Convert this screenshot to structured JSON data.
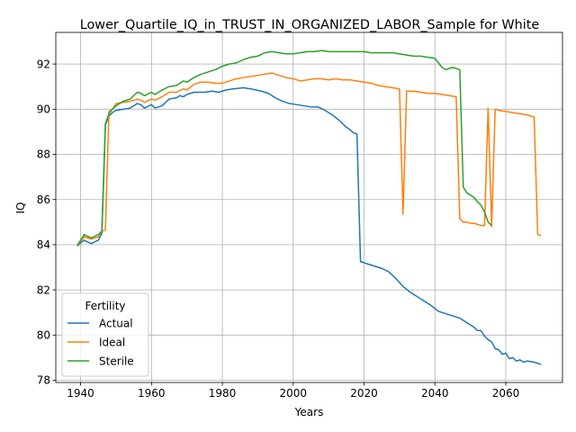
{
  "chart_data": {
    "type": "line",
    "title": "Lower_Quartile_IQ_in_TRUST_IN_ORGANIZED_LABOR_Sample for White",
    "xlabel": "Years",
    "ylabel": "IQ",
    "xlim": [
      1933,
      2076
    ],
    "ylim": [
      77.9,
      93.4
    ],
    "xticks": [
      1940,
      1960,
      1980,
      2000,
      2020,
      2040,
      2060
    ],
    "yticks": [
      78,
      80,
      82,
      84,
      86,
      88,
      90,
      92
    ],
    "grid": true,
    "legend": {
      "title": "Fertility",
      "placement": "lower-left"
    },
    "series": [
      {
        "name": "Actual",
        "color": "#1f77b4",
        "points": [
          [
            1939,
            83.95
          ],
          [
            1941,
            84.2
          ],
          [
            1943,
            84.05
          ],
          [
            1945,
            84.2
          ],
          [
            1946,
            84.5
          ],
          [
            1947,
            89.3
          ],
          [
            1948,
            89.7
          ],
          [
            1949,
            89.85
          ],
          [
            1950,
            89.95
          ],
          [
            1952,
            90.0
          ],
          [
            1954,
            90.05
          ],
          [
            1956,
            90.25
          ],
          [
            1957,
            90.2
          ],
          [
            1958,
            90.05
          ],
          [
            1960,
            90.2
          ],
          [
            1961,
            90.05
          ],
          [
            1963,
            90.15
          ],
          [
            1965,
            90.45
          ],
          [
            1967,
            90.5
          ],
          [
            1968,
            90.6
          ],
          [
            1969,
            90.55
          ],
          [
            1970,
            90.65
          ],
          [
            1972,
            90.75
          ],
          [
            1975,
            90.75
          ],
          [
            1977,
            90.8
          ],
          [
            1979,
            90.75
          ],
          [
            1981,
            90.85
          ],
          [
            1983,
            90.9
          ],
          [
            1986,
            90.95
          ],
          [
            1988,
            90.9
          ],
          [
            1991,
            90.8
          ],
          [
            1993,
            90.7
          ],
          [
            1995,
            90.5
          ],
          [
            1997,
            90.35
          ],
          [
            1999,
            90.25
          ],
          [
            2001,
            90.2
          ],
          [
            2003,
            90.15
          ],
          [
            2005,
            90.1
          ],
          [
            2007,
            90.1
          ],
          [
            2009,
            89.95
          ],
          [
            2011,
            89.75
          ],
          [
            2013,
            89.5
          ],
          [
            2015,
            89.2
          ],
          [
            2016,
            89.1
          ],
          [
            2017,
            88.95
          ],
          [
            2018,
            88.9
          ],
          [
            2019,
            83.25
          ],
          [
            2020,
            83.2
          ],
          [
            2021,
            83.15
          ],
          [
            2023,
            83.05
          ],
          [
            2025,
            82.95
          ],
          [
            2027,
            82.8
          ],
          [
            2029,
            82.5
          ],
          [
            2031,
            82.15
          ],
          [
            2033,
            81.9
          ],
          [
            2035,
            81.7
          ],
          [
            2037,
            81.5
          ],
          [
            2039,
            81.3
          ],
          [
            2041,
            81.05
          ],
          [
            2043,
            80.95
          ],
          [
            2045,
            80.85
          ],
          [
            2047,
            80.75
          ],
          [
            2049,
            80.55
          ],
          [
            2051,
            80.35
          ],
          [
            2052,
            80.2
          ],
          [
            2053,
            80.2
          ],
          [
            2054,
            79.95
          ],
          [
            2055,
            79.8
          ],
          [
            2056,
            79.7
          ],
          [
            2057,
            79.4
          ],
          [
            2058,
            79.35
          ],
          [
            2059,
            79.15
          ],
          [
            2060,
            79.2
          ],
          [
            2061,
            78.95
          ],
          [
            2062,
            79.0
          ],
          [
            2063,
            78.85
          ],
          [
            2064,
            78.9
          ],
          [
            2065,
            78.8
          ],
          [
            2066,
            78.85
          ],
          [
            2068,
            78.8
          ],
          [
            2070,
            78.7
          ]
        ]
      },
      {
        "name": "Ideal",
        "color": "#ff7f0e",
        "points": [
          [
            1939,
            83.95
          ],
          [
            1941,
            84.35
          ],
          [
            1943,
            84.25
          ],
          [
            1945,
            84.35
          ],
          [
            1946,
            84.6
          ],
          [
            1947,
            84.65
          ],
          [
            1948,
            89.9
          ],
          [
            1949,
            90.0
          ],
          [
            1950,
            90.25
          ],
          [
            1952,
            90.3
          ],
          [
            1954,
            90.35
          ],
          [
            1956,
            90.45
          ],
          [
            1957,
            90.4
          ],
          [
            1958,
            90.3
          ],
          [
            1960,
            90.45
          ],
          [
            1961,
            90.4
          ],
          [
            1963,
            90.55
          ],
          [
            1965,
            90.75
          ],
          [
            1967,
            90.75
          ],
          [
            1969,
            90.9
          ],
          [
            1970,
            90.85
          ],
          [
            1972,
            91.1
          ],
          [
            1974,
            91.2
          ],
          [
            1976,
            91.2
          ],
          [
            1978,
            91.15
          ],
          [
            1980,
            91.15
          ],
          [
            1982,
            91.25
          ],
          [
            1984,
            91.35
          ],
          [
            1986,
            91.4
          ],
          [
            1988,
            91.45
          ],
          [
            1990,
            91.5
          ],
          [
            1992,
            91.55
          ],
          [
            1994,
            91.6
          ],
          [
            1996,
            91.5
          ],
          [
            1998,
            91.4
          ],
          [
            2000,
            91.35
          ],
          [
            2002,
            91.25
          ],
          [
            2004,
            91.3
          ],
          [
            2006,
            91.35
          ],
          [
            2008,
            91.35
          ],
          [
            2010,
            91.3
          ],
          [
            2012,
            91.35
          ],
          [
            2014,
            91.3
          ],
          [
            2016,
            91.3
          ],
          [
            2018,
            91.25
          ],
          [
            2020,
            91.2
          ],
          [
            2022,
            91.15
          ],
          [
            2024,
            91.05
          ],
          [
            2026,
            91.0
          ],
          [
            2028,
            90.95
          ],
          [
            2030,
            90.9
          ],
          [
            2031,
            85.35
          ],
          [
            2032,
            90.8
          ],
          [
            2034,
            90.8
          ],
          [
            2036,
            90.75
          ],
          [
            2038,
            90.7
          ],
          [
            2040,
            90.7
          ],
          [
            2042,
            90.65
          ],
          [
            2044,
            90.6
          ],
          [
            2046,
            90.55
          ],
          [
            2047,
            85.15
          ],
          [
            2048,
            85.0
          ],
          [
            2049,
            85.0
          ],
          [
            2050,
            84.95
          ],
          [
            2051,
            84.95
          ],
          [
            2052,
            84.9
          ],
          [
            2053,
            84.85
          ],
          [
            2054,
            84.85
          ],
          [
            2055,
            90.05
          ],
          [
            2056,
            84.8
          ],
          [
            2057,
            90.0
          ],
          [
            2058,
            89.95
          ],
          [
            2060,
            89.9
          ],
          [
            2062,
            89.85
          ],
          [
            2064,
            89.8
          ],
          [
            2066,
            89.75
          ],
          [
            2068,
            89.65
          ],
          [
            2069,
            84.45
          ],
          [
            2070,
            84.4
          ]
        ]
      },
      {
        "name": "Sterile",
        "color": "#2ca02c",
        "points": [
          [
            1939,
            83.95
          ],
          [
            1941,
            84.45
          ],
          [
            1943,
            84.3
          ],
          [
            1945,
            84.45
          ],
          [
            1946,
            84.6
          ],
          [
            1947,
            89.35
          ],
          [
            1948,
            89.8
          ],
          [
            1949,
            90.0
          ],
          [
            1950,
            90.15
          ],
          [
            1952,
            90.35
          ],
          [
            1954,
            90.45
          ],
          [
            1956,
            90.75
          ],
          [
            1957,
            90.7
          ],
          [
            1958,
            90.6
          ],
          [
            1960,
            90.75
          ],
          [
            1961,
            90.65
          ],
          [
            1963,
            90.85
          ],
          [
            1965,
            91.0
          ],
          [
            1967,
            91.05
          ],
          [
            1969,
            91.25
          ],
          [
            1970,
            91.2
          ],
          [
            1972,
            91.4
          ],
          [
            1974,
            91.55
          ],
          [
            1976,
            91.65
          ],
          [
            1978,
            91.75
          ],
          [
            1980,
            91.9
          ],
          [
            1982,
            92.0
          ],
          [
            1984,
            92.05
          ],
          [
            1986,
            92.2
          ],
          [
            1988,
            92.3
          ],
          [
            1990,
            92.35
          ],
          [
            1992,
            92.5
          ],
          [
            1994,
            92.55
          ],
          [
            1996,
            92.5
          ],
          [
            1998,
            92.45
          ],
          [
            2000,
            92.45
          ],
          [
            2002,
            92.5
          ],
          [
            2004,
            92.55
          ],
          [
            2006,
            92.55
          ],
          [
            2008,
            92.6
          ],
          [
            2010,
            92.55
          ],
          [
            2012,
            92.55
          ],
          [
            2014,
            92.55
          ],
          [
            2016,
            92.55
          ],
          [
            2018,
            92.55
          ],
          [
            2020,
            92.55
          ],
          [
            2022,
            92.5
          ],
          [
            2024,
            92.5
          ],
          [
            2026,
            92.5
          ],
          [
            2028,
            92.5
          ],
          [
            2030,
            92.45
          ],
          [
            2032,
            92.4
          ],
          [
            2034,
            92.35
          ],
          [
            2036,
            92.35
          ],
          [
            2038,
            92.3
          ],
          [
            2040,
            92.25
          ],
          [
            2041,
            92.05
          ],
          [
            2042,
            91.85
          ],
          [
            2043,
            91.75
          ],
          [
            2044,
            91.8
          ],
          [
            2045,
            91.85
          ],
          [
            2046,
            91.8
          ],
          [
            2047,
            91.75
          ],
          [
            2048,
            86.55
          ],
          [
            2049,
            86.3
          ],
          [
            2050,
            86.2
          ],
          [
            2051,
            86.1
          ],
          [
            2052,
            85.9
          ],
          [
            2053,
            85.75
          ],
          [
            2054,
            85.45
          ],
          [
            2055,
            85.0
          ],
          [
            2056,
            84.85
          ]
        ]
      }
    ]
  }
}
